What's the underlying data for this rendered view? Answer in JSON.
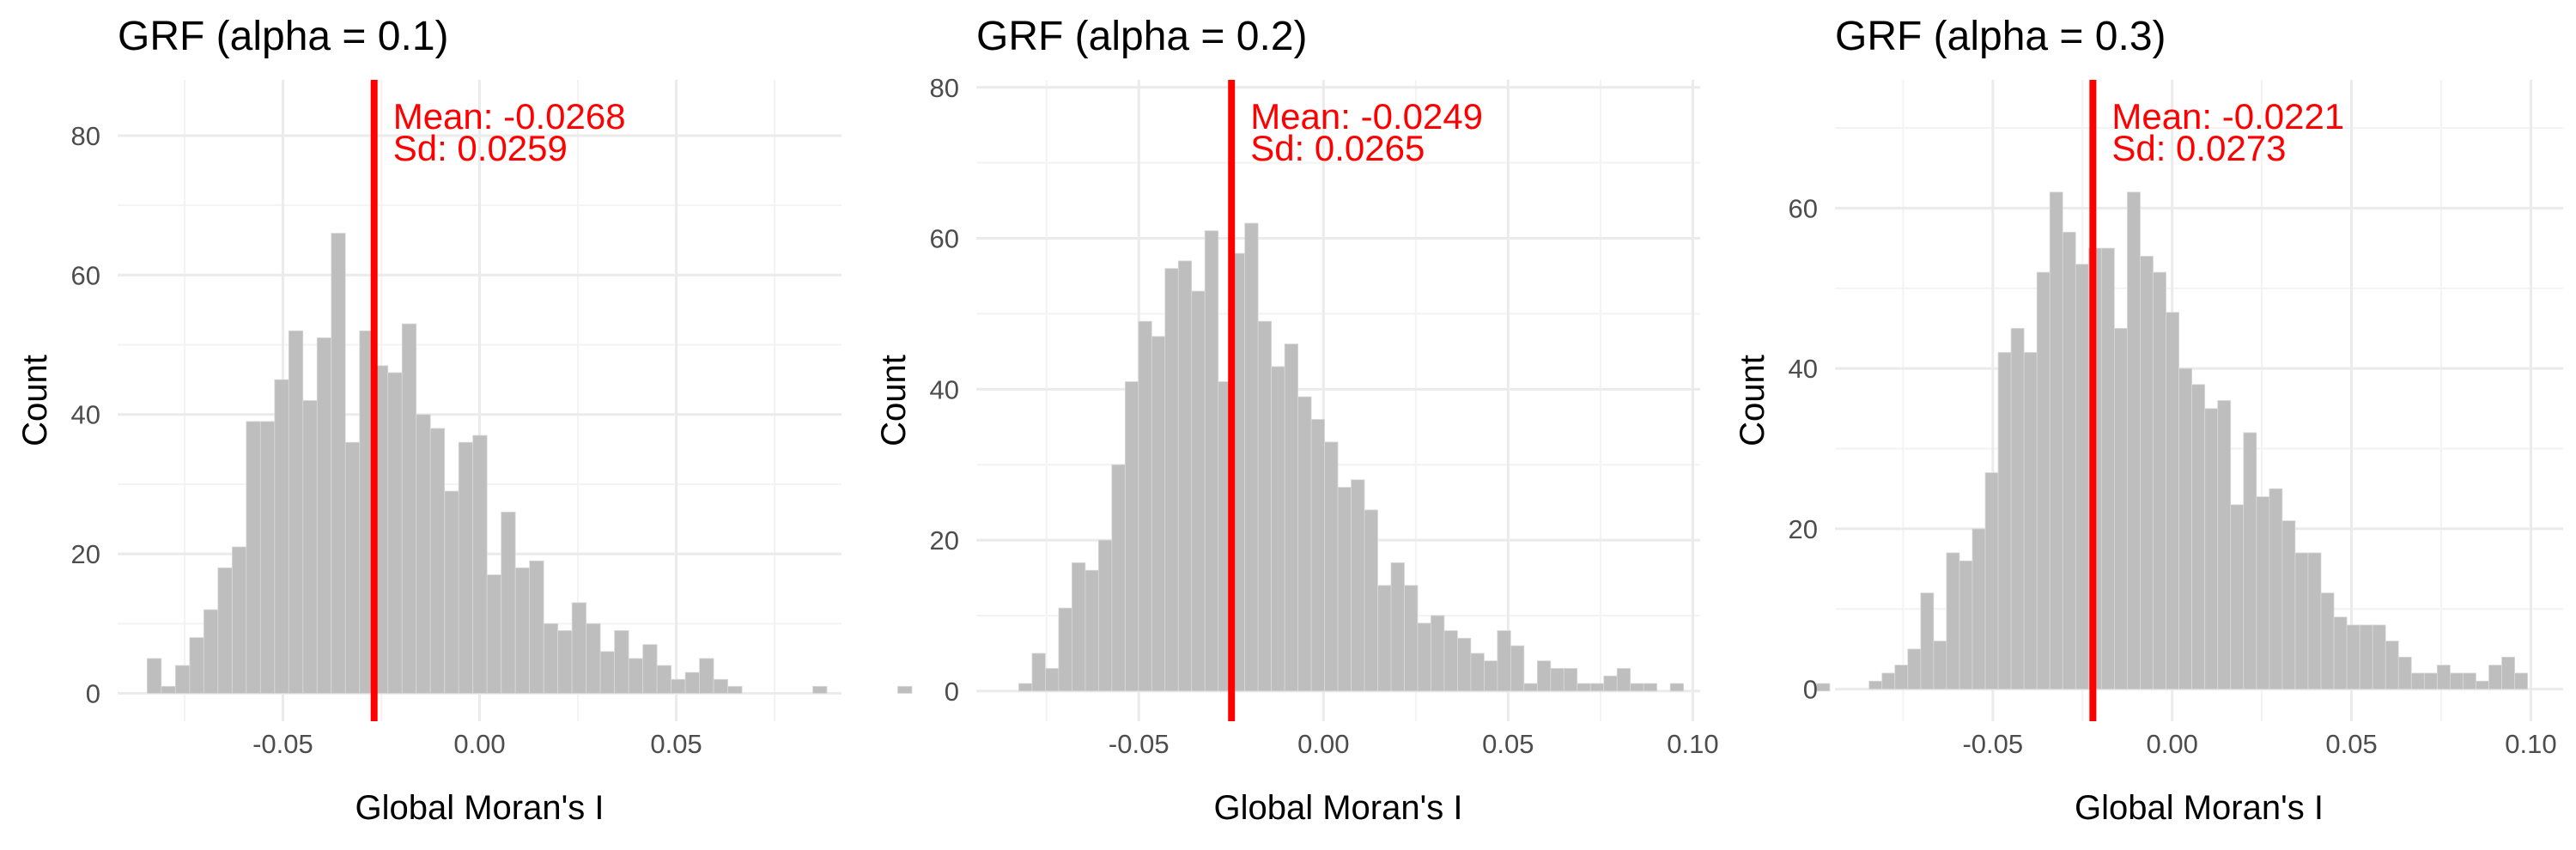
{
  "colors": {
    "bar": "#bebebe",
    "mean_line": "#ff0000",
    "annotation": "#ff0000",
    "grid": "#ebebeb"
  },
  "chart_data": [
    {
      "type": "bar",
      "title": "GRF (alpha = 0.1)",
      "xlabel": "Global Moran's I",
      "ylabel": "Count",
      "xlim": [
        -0.092,
        0.092
      ],
      "ylim": [
        -4,
        88
      ],
      "xticks": [
        "-0.05",
        "0.00",
        "0.05"
      ],
      "xtick_values": [
        -0.05,
        0.0,
        0.05
      ],
      "yticks": [
        "0",
        "20",
        "40",
        "60",
        "80"
      ],
      "ytick_values": [
        0,
        20,
        40,
        60,
        80
      ],
      "bin_start": -0.0845,
      "bin_width": 0.0036,
      "values": [
        5,
        1,
        4,
        8,
        12,
        18,
        21,
        39,
        39,
        45,
        52,
        42,
        51,
        66,
        36,
        52,
        47,
        46,
        53,
        40,
        38,
        29,
        36,
        37,
        17,
        26,
        18,
        19,
        10,
        9,
        13,
        10,
        6,
        9,
        5,
        7,
        4,
        2,
        3,
        5,
        2,
        1,
        0,
        0,
        0,
        0,
        0,
        1,
        0,
        0,
        0,
        0,
        0,
        1
      ],
      "mean": -0.0268,
      "annotation": {
        "mean": "Mean: -0.0268",
        "sd": "Sd: 0.0259"
      }
    },
    {
      "type": "bar",
      "title": "GRF (alpha = 0.2)",
      "xlabel": "Global Moran's I",
      "ylabel": "Count",
      "xlim": [
        -0.094,
        0.102
      ],
      "ylim": [
        -4,
        81
      ],
      "xticks": [
        "-0.05",
        "0.00",
        "0.05",
        "0.10"
      ],
      "xtick_values": [
        -0.05,
        0.0,
        0.05,
        0.1
      ],
      "yticks": [
        "0",
        "20",
        "40",
        "60",
        "80"
      ],
      "ytick_values": [
        0,
        20,
        40,
        60,
        80
      ],
      "bin_start": -0.0825,
      "bin_width": 0.0036,
      "values": [
        1,
        5,
        3,
        11,
        17,
        16,
        20,
        30,
        41,
        49,
        47,
        56,
        57,
        53,
        61,
        41,
        58,
        62,
        49,
        43,
        46,
        39,
        36,
        33,
        27,
        28,
        24,
        14,
        17,
        14,
        9,
        10,
        8,
        7,
        5,
        4,
        8,
        6,
        1,
        4,
        3,
        3,
        1,
        1,
        2,
        3,
        1,
        1,
        0,
        1,
        0,
        0,
        0,
        0,
        0,
        0,
        0,
        0,
        0,
        0,
        1
      ],
      "mean": -0.0249,
      "annotation": {
        "mean": "Mean: -0.0249",
        "sd": "Sd: 0.0265"
      }
    },
    {
      "type": "bar",
      "title": "GRF (alpha = 0.3)",
      "xlabel": "Global Moran's I",
      "ylabel": "Count",
      "xlim": [
        -0.094,
        0.109
      ],
      "ylim": [
        -4,
        76
      ],
      "xticks": [
        "-0.05",
        "0.00",
        "0.05",
        "0.10"
      ],
      "xtick_values": [
        -0.05,
        0.0,
        0.05,
        0.1
      ],
      "yticks": [
        "0",
        "20",
        "40",
        "60"
      ],
      "ytick_values": [
        0,
        20,
        40,
        60
      ],
      "bin_start": -0.0845,
      "bin_width": 0.0036,
      "values": [
        1,
        2,
        3,
        5,
        12,
        6,
        17,
        16,
        20,
        27,
        42,
        45,
        42,
        52,
        62,
        57,
        53,
        55,
        55,
        45,
        62,
        54,
        52,
        47,
        40,
        38,
        35,
        36,
        23,
        32,
        24,
        25,
        21,
        17,
        17,
        12,
        9,
        8,
        8,
        8,
        6,
        4,
        2,
        2,
        3,
        2,
        2,
        1,
        3,
        4,
        2,
        0,
        0,
        0,
        0,
        0,
        0,
        0,
        0,
        0,
        0,
        0,
        0,
        0,
        0,
        0,
        0,
        0,
        1
      ],
      "mean": -0.0221,
      "annotation": {
        "mean": "Mean: -0.0221",
        "sd": "Sd: 0.0273"
      }
    }
  ]
}
